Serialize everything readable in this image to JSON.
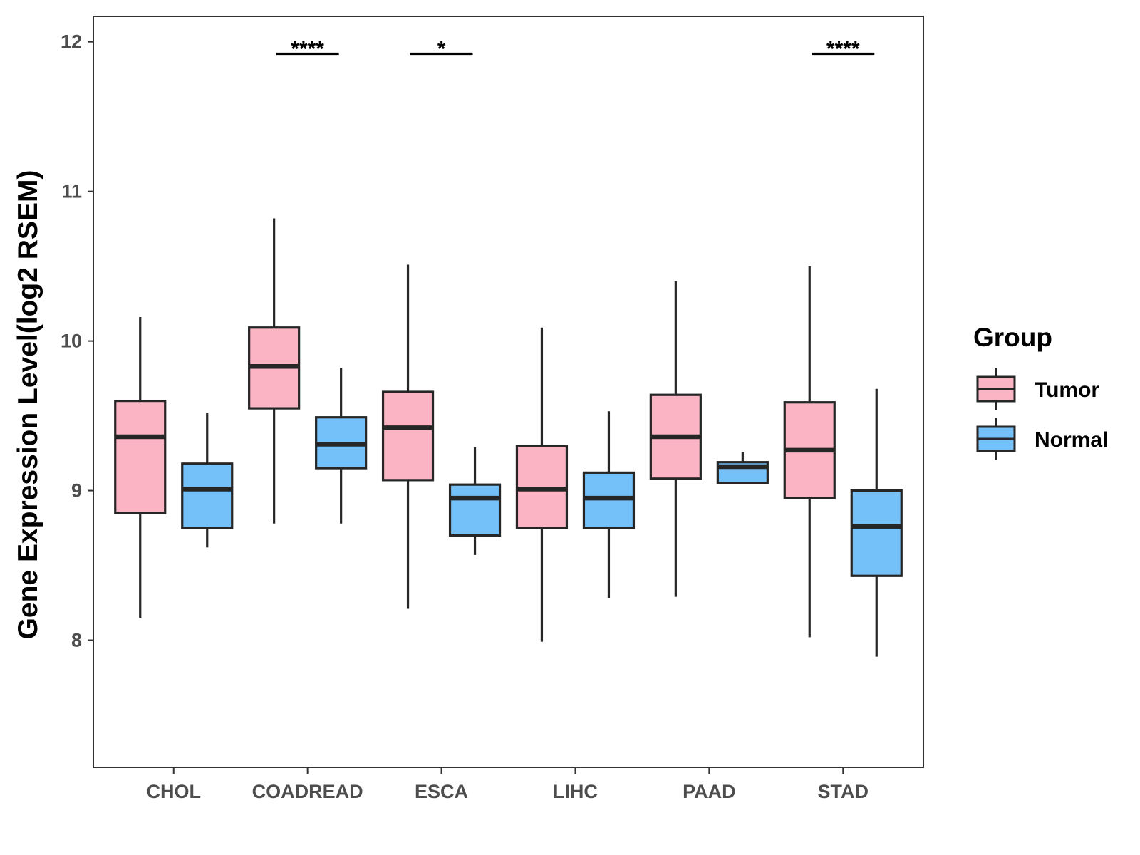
{
  "chart_data": {
    "type": "boxplot",
    "title": "",
    "xlabel": "",
    "ylabel": "Gene Expression Level(log2 RSEM)",
    "ylim": [
      7.15,
      12.17
    ],
    "yticks": [
      8,
      9,
      10,
      11,
      12
    ],
    "ytick_labels": [
      "8",
      "9",
      "10",
      "11",
      "12"
    ],
    "categories": [
      "CHOL",
      "COADREAD",
      "ESCA",
      "LIHC",
      "PAAD",
      "STAD"
    ],
    "legend": {
      "title": "Group",
      "position": "right",
      "items": [
        {
          "label": "Tumor",
          "color": "#fbb4c4"
        },
        {
          "label": "Normal",
          "color": "#74c0f8"
        }
      ]
    },
    "series": [
      {
        "name": "Tumor",
        "color": "#fbb4c4",
        "boxes": [
          {
            "category": "CHOL",
            "min": 8.15,
            "q1": 8.85,
            "median": 9.36,
            "q3": 9.6,
            "max": 10.16
          },
          {
            "category": "COADREAD",
            "min": 8.78,
            "q1": 9.55,
            "median": 9.83,
            "q3": 10.09,
            "max": 10.82
          },
          {
            "category": "ESCA",
            "min": 8.21,
            "q1": 9.07,
            "median": 9.42,
            "q3": 9.66,
            "max": 10.51
          },
          {
            "category": "LIHC",
            "min": 7.99,
            "q1": 8.75,
            "median": 9.01,
            "q3": 9.3,
            "max": 10.09
          },
          {
            "category": "PAAD",
            "min": 8.29,
            "q1": 9.08,
            "median": 9.36,
            "q3": 9.64,
            "max": 10.4
          },
          {
            "category": "STAD",
            "min": 8.02,
            "q1": 8.95,
            "median": 9.27,
            "q3": 9.59,
            "max": 10.5
          }
        ]
      },
      {
        "name": "Normal",
        "color": "#74c0f8",
        "boxes": [
          {
            "category": "CHOL",
            "min": 8.62,
            "q1": 8.75,
            "median": 9.01,
            "q3": 9.18,
            "max": 9.52
          },
          {
            "category": "COADREAD",
            "min": 8.78,
            "q1": 9.15,
            "median": 9.31,
            "q3": 9.49,
            "max": 9.82
          },
          {
            "category": "ESCA",
            "min": 8.57,
            "q1": 8.7,
            "median": 8.95,
            "q3": 9.04,
            "max": 9.29
          },
          {
            "category": "LIHC",
            "min": 8.28,
            "q1": 8.75,
            "median": 8.95,
            "q3": 9.12,
            "max": 9.53
          },
          {
            "category": "PAAD",
            "min": 9.05,
            "q1": 9.05,
            "median": 9.16,
            "q3": 9.19,
            "max": 9.26
          },
          {
            "category": "STAD",
            "min": 7.89,
            "q1": 8.43,
            "median": 8.76,
            "q3": 9.0,
            "max": 9.68
          }
        ]
      }
    ],
    "significance": [
      {
        "category": "COADREAD",
        "label": "****",
        "y": 11.92
      },
      {
        "category": "ESCA",
        "label": "*",
        "y": 11.92
      },
      {
        "category": "STAD",
        "label": "****",
        "y": 11.92
      }
    ]
  }
}
